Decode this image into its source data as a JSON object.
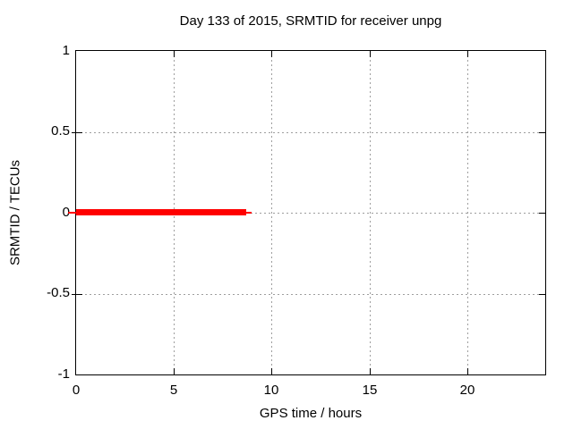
{
  "chart_data": {
    "type": "line",
    "title": "Day 133 of 2015, SRMTID for receiver unpg",
    "xlabel": "GPS time / hours",
    "ylabel": "SRMTID / TECUs",
    "xlim": [
      0,
      24
    ],
    "ylim": [
      -1,
      1
    ],
    "x_tick_values": [
      0,
      5,
      10,
      15,
      20
    ],
    "x_tick_labels": [
      "0",
      "5",
      "10",
      "15",
      "20"
    ],
    "y_tick_values": [
      1,
      0.5,
      0,
      -0.5,
      -1
    ],
    "y_tick_labels": [
      "1",
      "0.5",
      "0",
      "-0.5",
      "-1"
    ],
    "grid": true,
    "legend": "none",
    "series": [
      {
        "name": "SRMTID",
        "color": "#ff0000",
        "style": "thick horizontal line segment",
        "points": [
          {
            "x": 0,
            "y": 0
          },
          {
            "x": 8.7,
            "y": 0
          }
        ]
      }
    ]
  },
  "colors": {
    "background": "#ffffff",
    "plot_border": "#000000",
    "grid": "#9e9e9e",
    "series_red": "#ff0000",
    "text": "#000000"
  }
}
